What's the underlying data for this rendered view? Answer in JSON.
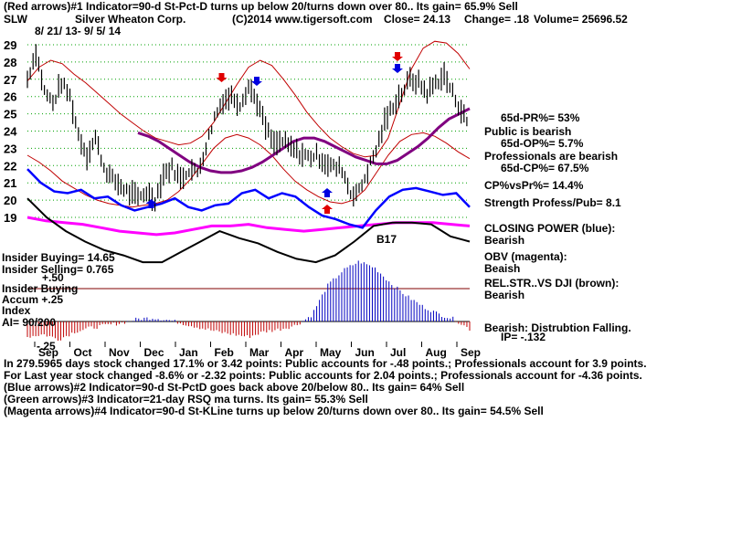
{
  "header": {
    "line1": "(Red arrows)#1 Indicator=90-d St-Pct-D turns up below 20/turns down over 80..  Its gain= 65.9% Sell",
    "symbol": "SLW",
    "company": "Silver Wheaton Corp.",
    "copyright": "(C)2014 www.tigersoft.com",
    "close": "Close=  24.13",
    "change": "Change= .18",
    "volume": "Volume=  25696.52",
    "date_range": "8/ 21/ 13-  9/ 5/ 14"
  },
  "right_panel": {
    "pr": "65d-PR%= 53%",
    "public": "Public is bearish",
    "op": "65d-OP%= 5.7%",
    "pros": "Professionals are bearish",
    "cp": "65d-CP%= 67.5%",
    "cpvspr": "CP%vsPr%=  14.4%",
    "strength": "Strength Profess/Pub= 8.1",
    "closing_power": "CLOSING POWER (blue):",
    "closing_power_val": "Bearish",
    "obv": "OBV (magenta):",
    "obv_val": "Beaish",
    "relstr": "REL.STR..VS DJI (brown):",
    "relstr_val": "Bearish",
    "bearish": "Bearish:  Distrubtion Falling.",
    "ip": "IP= -.132"
  },
  "left_panel": {
    "insider_buying": "Insider Buying= 14.65",
    "insider_selling": "Insider Selling= 0.765",
    "plus50": "+.50",
    "accum_title": "Insider Buying",
    "accum_plus25": "Accum  +.25",
    "index": "Index",
    "ai": "AI= 90/200",
    "minus25": "-.25",
    "b17": "B17"
  },
  "footer": {
    "line1": "In 279.5965 days stock changed  17.1% or  3.42 points:  Public accounts for -.48 points.;  Professionals account for  3.9 points.",
    "line2": "For Last year stock changed -8.6% or -2.32 points:  Public accounts for  2.04 points.;  Professionals account for -4.36 points.",
    "line3": "(Blue arrows)#2 Indicator=90-d St-PctD goes back above 20/below 80..  Its gain= 64% Sell",
    "line4": "(Green arrows)#3 Indicator=21-day RSQ ma turns.  Its gain= 55.3% Sell",
    "line5": "(Magenta arrows)#4 Indicator=90-d St-KLine turns up below 20/turns down over 80..  Its gain= 54.5% Sell"
  },
  "colors": {
    "price": "#000000",
    "bands": "#c00000",
    "ma": "#800080",
    "closing_power": "#0000ff",
    "obv": "#ff00ff",
    "relstr": "#000000",
    "accum_positive": "#0000c0",
    "accum_negative": "#c00000",
    "grid": "#00a000"
  },
  "chart_data": {
    "type": "line",
    "ylim": [
      18.5,
      29.5
    ],
    "y_ticks": [
      29,
      28,
      27,
      26,
      25,
      24,
      23,
      22,
      21,
      20,
      19
    ],
    "x_months": [
      "Sep",
      "Oct",
      "Nov",
      "Dec",
      "Jan",
      "Feb",
      "Mar",
      "Apr",
      "May",
      "Jun",
      "Jul",
      "Aug",
      "Sep"
    ],
    "price": {
      "name": "SLW close",
      "values": [
        27.0,
        28.6,
        26.3,
        25.6,
        26.8,
        26.0,
        23.8,
        22.6,
        23.6,
        21.9,
        21.2,
        20.8,
        20.4,
        20.1,
        20.5,
        20.0,
        21.5,
        21.9,
        21.2,
        21.8,
        21.6,
        23.1,
        24.8,
        25.8,
        26.0,
        25.6,
        26.6,
        25.7,
        24.2,
        23.2,
        23.4,
        23.0,
        22.7,
        22.5,
        22.6,
        22.2,
        21.9,
        21.8,
        20.4,
        20.5,
        21.7,
        22.9,
        24.5,
        25.5,
        26.2,
        27.0,
        26.8,
        26.2,
        26.8,
        27.2,
        26.2,
        25.2,
        24.2
      ]
    },
    "upper_band": [
      26.9,
      27.7,
      28.1,
      27.9,
      27.3,
      26.8,
      26.2,
      25.6,
      25.0,
      24.5,
      24.0,
      23.6,
      23.4,
      23.2,
      23.3,
      23.7,
      24.5,
      25.6,
      26.7,
      27.7,
      28.1,
      27.8,
      27.0,
      26.1,
      25.1,
      24.3,
      23.6,
      23.1,
      22.7,
      22.5,
      22.6,
      23.6,
      25.6,
      27.6,
      28.8,
      29.2,
      29.1,
      28.5,
      27.6
    ],
    "lower_band": [
      22.6,
      22.2,
      21.7,
      21.1,
      20.7,
      20.3,
      20.0,
      19.8,
      19.7,
      19.6,
      19.7,
      19.8,
      20.0,
      20.5,
      21.2,
      22.1,
      23.0,
      23.6,
      23.8,
      23.6,
      23.2,
      22.6,
      21.8,
      21.1,
      20.6,
      20.2,
      19.9,
      19.8,
      20.0,
      20.6,
      21.6,
      22.6,
      23.4,
      23.8,
      23.9,
      23.7,
      23.3,
      22.8,
      22.4
    ],
    "ma": [
      23.9,
      23.7,
      23.4,
      23.0,
      22.6,
      22.2,
      21.9,
      21.7,
      21.6,
      21.6,
      21.7,
      21.9,
      22.2,
      22.6,
      23.0,
      23.4,
      23.6,
      23.6,
      23.4,
      23.1,
      22.8,
      22.5,
      22.3,
      22.1,
      22.1,
      22.3,
      22.7,
      23.1,
      23.6,
      24.2,
      24.7,
      25.0,
      25.3
    ],
    "closing_power": [
      21.8,
      21.0,
      20.5,
      20.4,
      20.6,
      20.1,
      20.2,
      19.7,
      19.4,
      19.6,
      19.8,
      20.1,
      19.6,
      19.4,
      19.7,
      19.8,
      20.4,
      20.6,
      20.1,
      20.4,
      20.2,
      19.6,
      19.1,
      18.9,
      18.6,
      18.4,
      19.4,
      20.2,
      20.6,
      20.7,
      20.5,
      20.3,
      20.4,
      19.6
    ],
    "obv": [
      19.0,
      18.8,
      18.7,
      18.6,
      18.4,
      18.2,
      18.1,
      18.0,
      18.1,
      18.3,
      18.5,
      18.5,
      18.6,
      18.4,
      18.3,
      18.2,
      18.3,
      18.4,
      18.5,
      18.6,
      18.7,
      18.7,
      18.7,
      18.6,
      18.5
    ],
    "relstr": [
      20.1,
      19.0,
      18.2,
      17.6,
      17.1,
      16.8,
      16.4,
      16.4,
      17.0,
      17.6,
      18.2,
      17.8,
      17.5,
      17.0,
      16.6,
      16.4,
      16.8,
      17.6,
      18.5,
      18.7,
      18.7,
      18.6,
      17.9,
      17.6
    ],
    "accum_index": [
      -0.12,
      -0.1,
      -0.14,
      -0.08,
      -0.05,
      -0.03,
      -0.01,
      0.02,
      0.03,
      0.01,
      -0.02,
      -0.05,
      -0.08,
      -0.1,
      -0.12,
      -0.08,
      -0.06,
      -0.03,
      0.05,
      0.28,
      0.4,
      0.47,
      0.42,
      0.3,
      0.2,
      0.12,
      0.06,
      0.02,
      -0.06
    ],
    "annotations": {
      "red_down_arrows": [
        "Feb",
        "Jul"
      ],
      "blue_down_arrows": [
        "Mar",
        "Jul"
      ],
      "red_up_arrows": [
        "May"
      ],
      "blue_up_arrows": [
        "Dec",
        "May"
      ]
    }
  }
}
